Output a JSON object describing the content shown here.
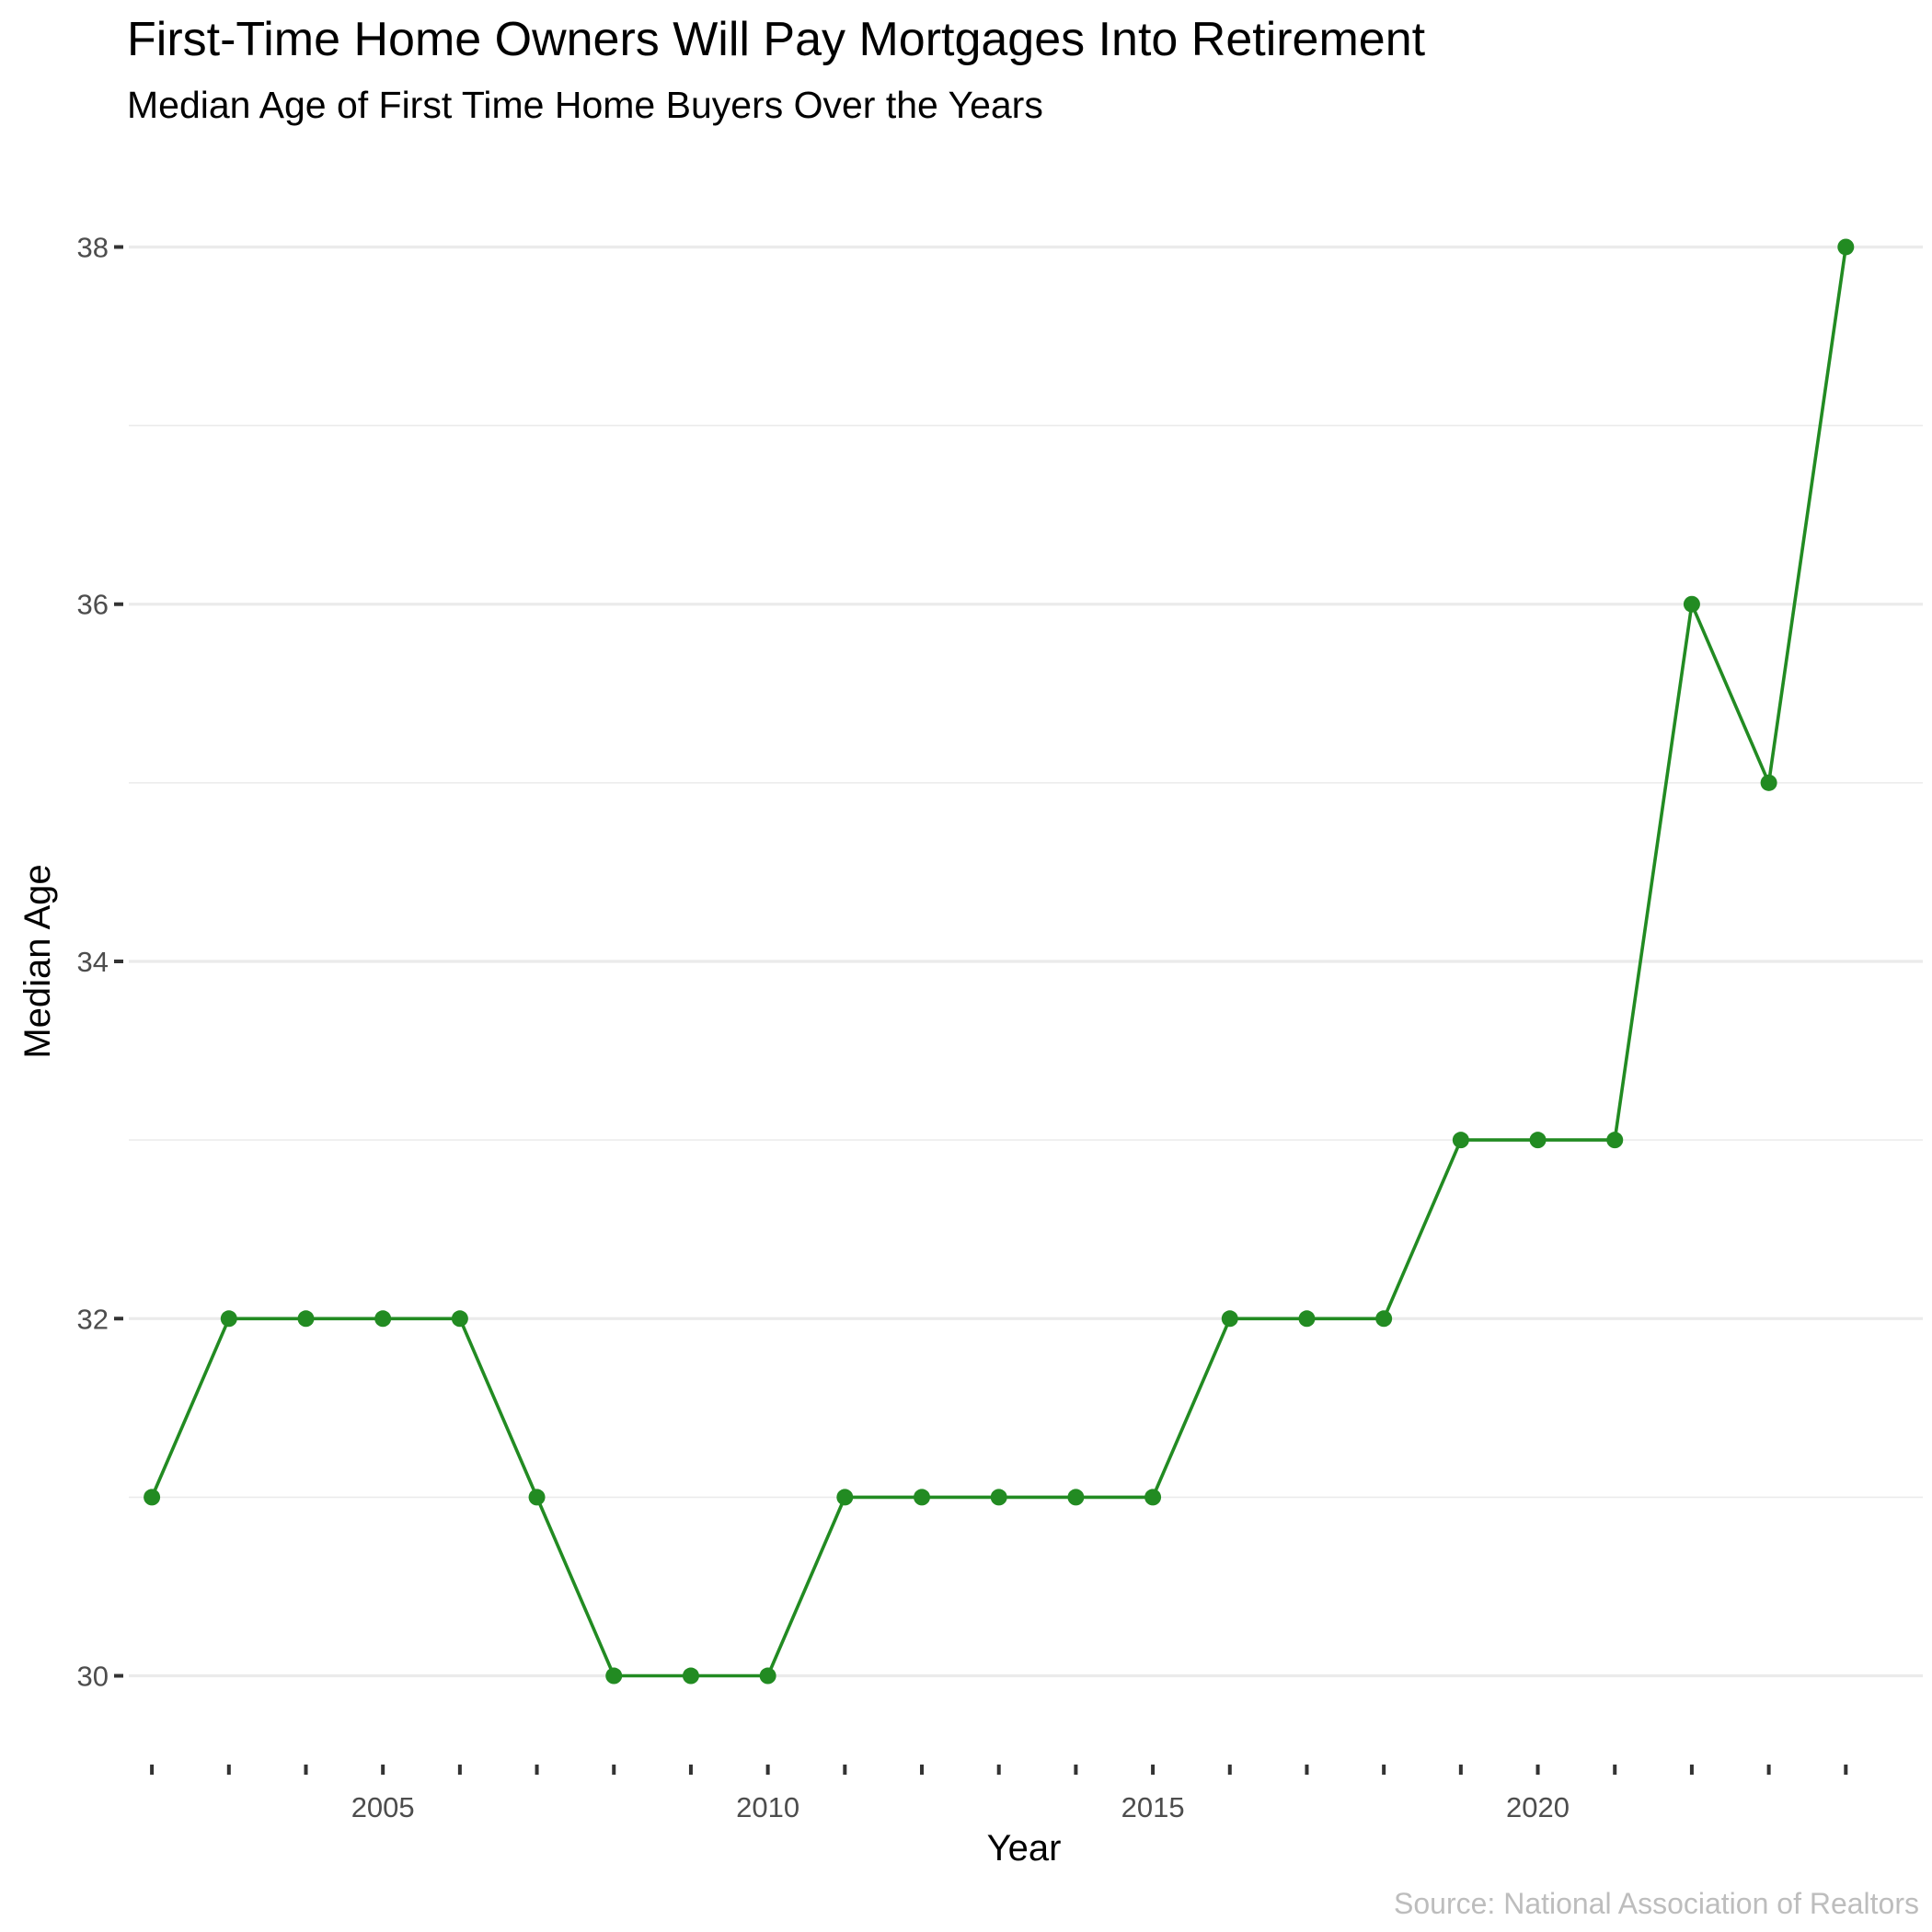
{
  "chart_data": {
    "type": "line",
    "title": "First-Time Home Owners Will Pay Mortgages Into Retirement",
    "subtitle": "Median Age of First Time Home Buyers Over the Years",
    "xlabel": "Year",
    "ylabel": "Median Age",
    "caption": "Source: National Association of Realtors",
    "x": [
      2002,
      2003,
      2004,
      2005,
      2006,
      2007,
      2008,
      2009,
      2010,
      2011,
      2012,
      2013,
      2014,
      2015,
      2016,
      2017,
      2018,
      2019,
      2020,
      2021,
      2022,
      2023,
      2024
    ],
    "values": [
      31,
      32,
      32,
      32,
      32,
      31,
      30,
      30,
      30,
      31,
      31,
      31,
      31,
      31,
      32,
      32,
      32,
      33,
      33,
      33,
      36,
      35,
      38
    ],
    "xlim": [
      2001.7,
      2025.0
    ],
    "ylim": [
      29.57,
      38.43
    ],
    "x_tick_labels": [
      "2005",
      "2010",
      "2015",
      "2020"
    ],
    "y_tick_labels": [
      "30",
      "32",
      "34",
      "36",
      "38"
    ],
    "grid": true,
    "line_color": "#228B22",
    "point_color": "#228B22"
  }
}
